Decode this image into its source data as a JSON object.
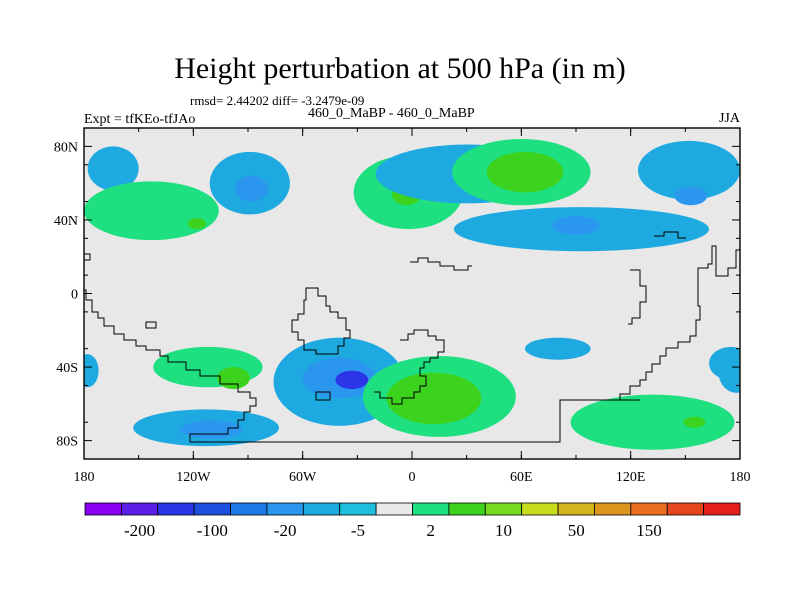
{
  "chart_data": {
    "type": "contour-map",
    "title": "Height perturbation at 500 hPa (in m)",
    "stats_line": "rmsd= 2.44202  diff= -3.2479e-09",
    "left_label": "Expt = tfKEo-tfJAo",
    "center_label": "460_0_MaBP - 460_0_MaBP",
    "right_label": "JJA",
    "x_ticks": [
      "180",
      "120W",
      "60W",
      "0",
      "60E",
      "120E",
      "180"
    ],
    "y_ticks": [
      "80N",
      "40N",
      "0",
      "40S",
      "80S"
    ],
    "xlim": [
      -180,
      180
    ],
    "ylim": [
      -90,
      90
    ],
    "colorbar": {
      "colors": [
        "#8a00f0",
        "#5a1ee6",
        "#2a36e8",
        "#1e50de",
        "#1e78e8",
        "#2a96ee",
        "#1eaae0",
        "#1ebedc",
        "#e8e8e8",
        "#1ee080",
        "#3cd21e",
        "#78dc1e",
        "#c8dc1e",
        "#d2b41e",
        "#dc961e",
        "#e66e1e",
        "#e6461e",
        "#e61e1e"
      ],
      "labels": [
        "-200",
        "-100",
        "-20",
        "-5",
        "2",
        "10",
        "50",
        "150"
      ]
    },
    "regions": [
      {
        "level": -5,
        "lon": -164,
        "lat": 68,
        "rlon": 14,
        "rlat": 12
      },
      {
        "level": -5,
        "lon": -89,
        "lat": 60,
        "rlon": 22,
        "rlat": 17
      },
      {
        "level": -20,
        "lon": -88,
        "lat": 57,
        "rlon": 9,
        "rlat": 7
      },
      {
        "level": 2,
        "lon": -143,
        "lat": 45,
        "rlon": 37,
        "rlat": 16
      },
      {
        "level": 10,
        "lon": -118,
        "lat": 38,
        "rlon": 5,
        "rlat": 3
      },
      {
        "level": 2,
        "lon": -2,
        "lat": 55,
        "rlon": 30,
        "rlat": 20
      },
      {
        "level": 10,
        "lon": -3,
        "lat": 54,
        "rlon": 8,
        "rlat": 6
      },
      {
        "level": -5,
        "lon": 30,
        "lat": 65,
        "rlon": 50,
        "rlat": 16
      },
      {
        "level": 2,
        "lon": 60,
        "lat": 66,
        "rlon": 38,
        "rlat": 18
      },
      {
        "level": 10,
        "lon": 62,
        "lat": 66,
        "rlon": 21,
        "rlat": 11
      },
      {
        "level": -5,
        "lon": 93,
        "lat": 35,
        "rlon": 70,
        "rlat": 12
      },
      {
        "level": -20,
        "lon": 90,
        "lat": 37,
        "rlon": 13,
        "rlat": 5
      },
      {
        "level": -5,
        "lon": 152,
        "lat": 67,
        "rlon": 28,
        "rlat": 16
      },
      {
        "level": -20,
        "lon": 153,
        "lat": 53,
        "rlon": 9,
        "rlat": 5
      },
      {
        "level": -5,
        "lon": 80,
        "lat": -30,
        "rlon": 18,
        "rlat": 6
      },
      {
        "level": -5,
        "lon": 175,
        "lat": -38,
        "rlon": 12,
        "rlat": 9
      },
      {
        "level": -5,
        "lon": 178,
        "lat": -42,
        "rlon": 10,
        "rlat": 12
      },
      {
        "level": -5,
        "lon": -178,
        "lat": -42,
        "rlon": 6,
        "rlat": 9
      },
      {
        "level": 2,
        "lon": -112,
        "lat": -40,
        "rlon": 30,
        "rlat": 11
      },
      {
        "level": 10,
        "lon": -98,
        "lat": -46,
        "rlon": 9,
        "rlat": 6
      },
      {
        "level": -5,
        "lon": -40,
        "lat": -48,
        "rlon": 36,
        "rlat": 24
      },
      {
        "level": -20,
        "lon": -40,
        "lat": -46,
        "rlon": 20,
        "rlat": 11
      },
      {
        "level": -100,
        "lon": -33,
        "lat": -47,
        "rlon": 9,
        "rlat": 5
      },
      {
        "level": 2,
        "lon": 15,
        "lat": -56,
        "rlon": 42,
        "rlat": 22
      },
      {
        "level": 10,
        "lon": 12,
        "lat": -57,
        "rlon": 26,
        "rlat": 14
      },
      {
        "level": -5,
        "lon": -113,
        "lat": -73,
        "rlon": 40,
        "rlat": 10
      },
      {
        "level": -20,
        "lon": -110,
        "lat": -74,
        "rlon": 17,
        "rlat": 5
      },
      {
        "level": 2,
        "lon": 132,
        "lat": -70,
        "rlon": 45,
        "rlat": 15
      },
      {
        "level": 10,
        "lon": 155,
        "lat": -70,
        "rlon": 6,
        "rlat": 3
      }
    ]
  }
}
